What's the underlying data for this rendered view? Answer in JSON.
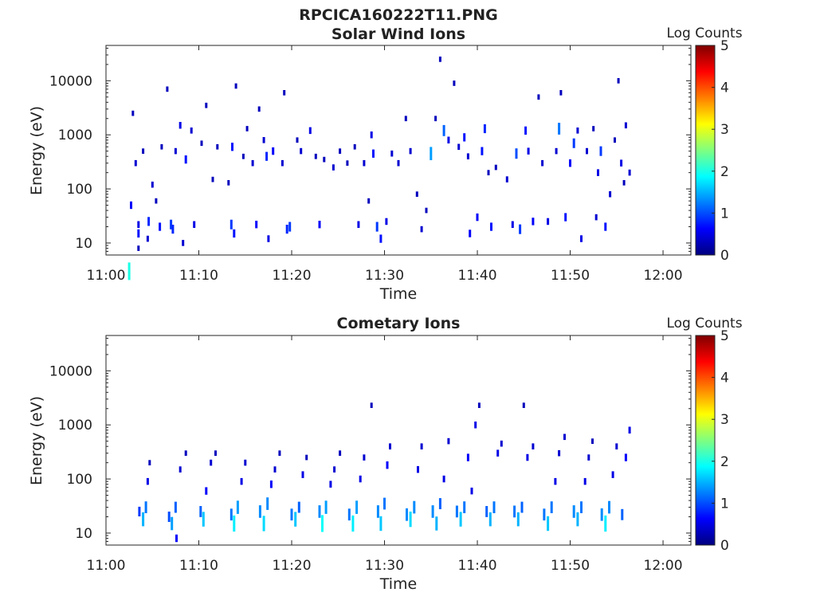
{
  "figure": {
    "title": "RPCICA160222T11.PNG"
  },
  "chart_data": [
    {
      "type": "heatmap",
      "title": "Solar Wind Ions",
      "xlabel": "Time",
      "ylabel": "Energy (eV)",
      "x_ticks": [
        "11:00",
        "11:10",
        "11:20",
        "11:30",
        "11:40",
        "11:50",
        "12:00"
      ],
      "x_tick_minutes": [
        0,
        10,
        20,
        30,
        40,
        50,
        60
      ],
      "xlim_minutes": [
        0,
        63
      ],
      "y_scale": "log",
      "y_ticks": [
        "10",
        "100",
        "1000",
        "10000"
      ],
      "y_tick_values": [
        10,
        100,
        1000,
        10000
      ],
      "ylim": [
        6,
        45000
      ],
      "colorbar": {
        "label": "Log Counts",
        "ticks": [
          "0",
          "1",
          "2",
          "3",
          "4",
          "5"
        ],
        "range": [
          0,
          5
        ],
        "colormap": "jet"
      },
      "grid": false,
      "cells": [
        [
          2.5,
          3,
          2
        ],
        [
          2.7,
          50,
          0.6
        ],
        [
          2.9,
          2500,
          0.3
        ],
        [
          3.2,
          300,
          0.4
        ],
        [
          3.5,
          22,
          0.5
        ],
        [
          3.5,
          15,
          0.7
        ],
        [
          3.5,
          8,
          0.3
        ],
        [
          4.0,
          500,
          0.3
        ],
        [
          4.5,
          12,
          0.4
        ],
        [
          4.6,
          25,
          0.8
        ],
        [
          5.0,
          120,
          0.4
        ],
        [
          5.4,
          60,
          0.3
        ],
        [
          5.8,
          20,
          0.7
        ],
        [
          6.0,
          600,
          0.3
        ],
        [
          6.6,
          7000,
          0.3
        ],
        [
          7.0,
          22,
          0.9
        ],
        [
          7.2,
          18,
          0.8
        ],
        [
          7.5,
          500,
          0.4
        ],
        [
          8.0,
          1500,
          0.5
        ],
        [
          8.3,
          10,
          0.4
        ],
        [
          8.6,
          350,
          0.7
        ],
        [
          9.2,
          1200,
          0.4
        ],
        [
          9.5,
          22,
          0.5
        ],
        [
          10.3,
          700,
          0.3
        ],
        [
          10.8,
          3500,
          0.3
        ],
        [
          11.5,
          150,
          0.3
        ],
        [
          12.0,
          600,
          0.3
        ],
        [
          13.2,
          130,
          0.3
        ],
        [
          13.5,
          22,
          0.9
        ],
        [
          13.6,
          600,
          0.7
        ],
        [
          13.8,
          15,
          0.7
        ],
        [
          14.0,
          8000,
          0.3
        ],
        [
          14.8,
          400,
          0.3
        ],
        [
          15.2,
          1300,
          0.3
        ],
        [
          15.8,
          300,
          0.4
        ],
        [
          16.2,
          22,
          0.6
        ],
        [
          16.5,
          3000,
          0.3
        ],
        [
          17.0,
          800,
          0.4
        ],
        [
          17.3,
          400,
          0.8
        ],
        [
          17.5,
          12,
          0.5
        ],
        [
          18.0,
          500,
          0.6
        ],
        [
          19.0,
          300,
          0.4
        ],
        [
          19.2,
          6000,
          0.3
        ],
        [
          19.5,
          18,
          0.8
        ],
        [
          19.8,
          20,
          0.9
        ],
        [
          20.6,
          800,
          0.3
        ],
        [
          21.0,
          500,
          0.4
        ],
        [
          22.0,
          1200,
          0.5
        ],
        [
          22.6,
          400,
          0.3
        ],
        [
          23.0,
          22,
          0.6
        ],
        [
          23.5,
          350,
          0.3
        ],
        [
          24.5,
          250,
          0.4
        ],
        [
          25.2,
          500,
          0.3
        ],
        [
          26.0,
          300,
          0.3
        ],
        [
          26.8,
          600,
          0.3
        ],
        [
          27.2,
          22,
          0.5
        ],
        [
          27.8,
          300,
          0.4
        ],
        [
          28.3,
          60,
          0.3
        ],
        [
          28.6,
          1000,
          0.5
        ],
        [
          28.8,
          450,
          0.7
        ],
        [
          29.2,
          20,
          0.9
        ],
        [
          29.6,
          12,
          0.7
        ],
        [
          30.2,
          25,
          0.5
        ],
        [
          30.8,
          450,
          0.4
        ],
        [
          31.5,
          300,
          0.4
        ],
        [
          32.3,
          2000,
          0.3
        ],
        [
          32.8,
          500,
          0.4
        ],
        [
          33.5,
          80,
          0.3
        ],
        [
          34.0,
          18,
          0.4
        ],
        [
          34.5,
          40,
          0.3
        ],
        [
          35.0,
          450,
          1.4
        ],
        [
          35.5,
          2000,
          0.3
        ],
        [
          36.0,
          25000,
          0.3
        ],
        [
          36.4,
          1200,
          1.1
        ],
        [
          36.9,
          800,
          0.5
        ],
        [
          37.5,
          9000,
          0.3
        ],
        [
          38.0,
          600,
          0.4
        ],
        [
          38.6,
          900,
          0.7
        ],
        [
          39.0,
          400,
          0.4
        ],
        [
          39.2,
          15,
          0.6
        ],
        [
          40.0,
          30,
          0.6
        ],
        [
          40.5,
          500,
          0.7
        ],
        [
          40.8,
          1300,
          0.8
        ],
        [
          41.2,
          200,
          0.3
        ],
        [
          41.5,
          20,
          0.7
        ],
        [
          42.0,
          250,
          0.3
        ],
        [
          43.2,
          150,
          0.4
        ],
        [
          43.8,
          22,
          0.5
        ],
        [
          44.2,
          450,
          1.0
        ],
        [
          44.6,
          18,
          0.9
        ],
        [
          45.2,
          1200,
          0.7
        ],
        [
          45.5,
          500,
          0.5
        ],
        [
          46.0,
          25,
          0.6
        ],
        [
          46.6,
          5000,
          0.3
        ],
        [
          47.0,
          300,
          0.4
        ],
        [
          47.6,
          25,
          0.5
        ],
        [
          48.5,
          500,
          0.4
        ],
        [
          48.8,
          1300,
          1.2
        ],
        [
          49.0,
          6000,
          0.3
        ],
        [
          49.5,
          30,
          0.7
        ],
        [
          50.0,
          300,
          0.6
        ],
        [
          50.4,
          700,
          0.9
        ],
        [
          50.8,
          1200,
          0.4
        ],
        [
          51.2,
          12,
          0.5
        ],
        [
          51.8,
          500,
          0.4
        ],
        [
          52.5,
          1300,
          0.3
        ],
        [
          52.8,
          30,
          0.4
        ],
        [
          53.0,
          200,
          0.5
        ],
        [
          53.3,
          500,
          0.9
        ],
        [
          53.8,
          20,
          0.7
        ],
        [
          54.3,
          80,
          0.4
        ],
        [
          54.8,
          800,
          0.3
        ],
        [
          55.2,
          10000,
          0.3
        ],
        [
          55.5,
          300,
          0.5
        ],
        [
          55.8,
          130,
          0.3
        ],
        [
          56.0,
          1500,
          0.4
        ],
        [
          56.4,
          200,
          0.4
        ]
      ]
    },
    {
      "type": "heatmap",
      "title": "Cometary Ions",
      "xlabel": "Time",
      "ylabel": "Energy (eV)",
      "x_ticks": [
        "11:00",
        "11:10",
        "11:20",
        "11:30",
        "11:40",
        "11:50",
        "12:00"
      ],
      "x_tick_minutes": [
        0,
        10,
        20,
        30,
        40,
        50,
        60
      ],
      "xlim_minutes": [
        0,
        63
      ],
      "y_scale": "log",
      "y_ticks": [
        "10",
        "100",
        "1000",
        "10000"
      ],
      "y_tick_values": [
        10,
        100,
        1000,
        10000
      ],
      "ylim": [
        6,
        45000
      ],
      "colorbar": {
        "label": "Log Counts",
        "ticks": [
          "0",
          "1",
          "2",
          "3",
          "4",
          "5"
        ],
        "range": [
          0,
          5
        ],
        "colormap": "jet"
      },
      "grid": false,
      "cells": [
        [
          3.6,
          25,
          0.9
        ],
        [
          4.0,
          18,
          1.5
        ],
        [
          4.3,
          30,
          1.2
        ],
        [
          4.5,
          90,
          0.5
        ],
        [
          4.7,
          200,
          0.3
        ],
        [
          6.8,
          20,
          1.0
        ],
        [
          7.1,
          15,
          1.4
        ],
        [
          7.5,
          30,
          1.1
        ],
        [
          7.6,
          8,
          0.6
        ],
        [
          8.0,
          150,
          0.4
        ],
        [
          8.6,
          300,
          0.3
        ],
        [
          10.2,
          25,
          1.1
        ],
        [
          10.5,
          18,
          1.6
        ],
        [
          10.8,
          60,
          0.6
        ],
        [
          11.3,
          200,
          0.4
        ],
        [
          11.8,
          300,
          0.3
        ],
        [
          13.5,
          22,
          1.2
        ],
        [
          13.8,
          15,
          1.8
        ],
        [
          14.2,
          30,
          1.4
        ],
        [
          14.6,
          90,
          0.5
        ],
        [
          15.0,
          200,
          0.4
        ],
        [
          16.6,
          25,
          1.3
        ],
        [
          17.0,
          15,
          1.7
        ],
        [
          17.4,
          35,
          1.3
        ],
        [
          17.8,
          80,
          0.6
        ],
        [
          18.2,
          150,
          0.4
        ],
        [
          18.7,
          300,
          0.3
        ],
        [
          20.0,
          22,
          1.2
        ],
        [
          20.4,
          18,
          1.6
        ],
        [
          20.8,
          30,
          1.1
        ],
        [
          21.2,
          120,
          0.5
        ],
        [
          21.6,
          250,
          0.3
        ],
        [
          23.0,
          25,
          1.3
        ],
        [
          23.3,
          15,
          1.9
        ],
        [
          23.7,
          30,
          1.4
        ],
        [
          24.2,
          80,
          0.5
        ],
        [
          24.6,
          150,
          0.4
        ],
        [
          25.2,
          300,
          0.3
        ],
        [
          26.2,
          22,
          1.2
        ],
        [
          26.6,
          15,
          1.8
        ],
        [
          27.0,
          30,
          1.4
        ],
        [
          27.4,
          100,
          0.5
        ],
        [
          27.8,
          250,
          0.4
        ],
        [
          28.6,
          2300,
          0.3
        ],
        [
          29.3,
          25,
          1.3
        ],
        [
          29.6,
          15,
          1.6
        ],
        [
          30.0,
          35,
          1.2
        ],
        [
          30.3,
          180,
          0.6
        ],
        [
          30.6,
          400,
          0.4
        ],
        [
          32.4,
          22,
          1.3
        ],
        [
          32.8,
          18,
          1.7
        ],
        [
          33.2,
          30,
          1.3
        ],
        [
          33.6,
          150,
          0.5
        ],
        [
          34.0,
          400,
          0.4
        ],
        [
          35.2,
          25,
          1.3
        ],
        [
          35.6,
          15,
          1.5
        ],
        [
          36.0,
          35,
          1.1
        ],
        [
          36.4,
          100,
          0.5
        ],
        [
          36.9,
          500,
          0.4
        ],
        [
          37.8,
          25,
          1.2
        ],
        [
          38.2,
          18,
          1.6
        ],
        [
          38.6,
          30,
          1.2
        ],
        [
          39.0,
          250,
          0.6
        ],
        [
          39.4,
          60,
          0.5
        ],
        [
          39.8,
          1000,
          0.5
        ],
        [
          40.2,
          2300,
          0.3
        ],
        [
          41.0,
          25,
          1.1
        ],
        [
          41.4,
          18,
          1.5
        ],
        [
          41.8,
          30,
          1.2
        ],
        [
          42.2,
          300,
          0.5
        ],
        [
          42.6,
          450,
          0.4
        ],
        [
          44.0,
          25,
          1.2
        ],
        [
          44.4,
          18,
          1.5
        ],
        [
          44.8,
          30,
          1.1
        ],
        [
          45.0,
          2300,
          0.3
        ],
        [
          45.4,
          250,
          0.5
        ],
        [
          46.0,
          400,
          0.4
        ],
        [
          47.2,
          22,
          1.2
        ],
        [
          47.6,
          15,
          1.6
        ],
        [
          48.0,
          30,
          1.2
        ],
        [
          48.4,
          90,
          0.5
        ],
        [
          48.8,
          300,
          0.4
        ],
        [
          49.4,
          600,
          0.4
        ],
        [
          50.4,
          25,
          1.3
        ],
        [
          50.8,
          18,
          1.5
        ],
        [
          51.2,
          30,
          1.2
        ],
        [
          51.6,
          90,
          0.5
        ],
        [
          52.0,
          250,
          0.4
        ],
        [
          52.4,
          500,
          0.3
        ],
        [
          53.4,
          22,
          1.3
        ],
        [
          53.8,
          15,
          1.8
        ],
        [
          54.2,
          30,
          1.3
        ],
        [
          54.6,
          120,
          0.5
        ],
        [
          55.0,
          400,
          0.4
        ],
        [
          55.6,
          22,
          1.1
        ],
        [
          56.0,
          250,
          0.6
        ],
        [
          56.4,
          800,
          0.5
        ]
      ]
    }
  ]
}
